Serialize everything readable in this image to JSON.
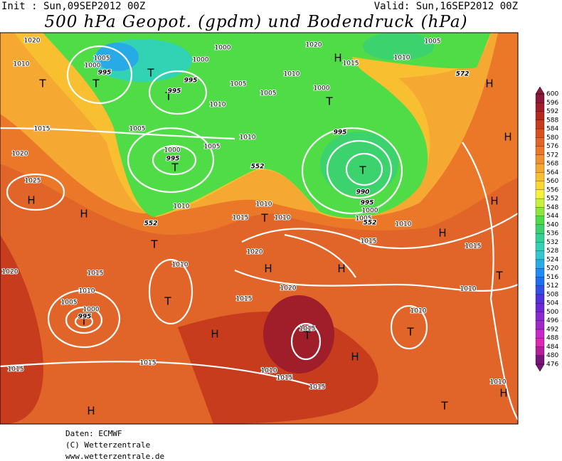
{
  "header": {
    "init": "Init : Sun,09SEP2012 00Z",
    "valid": "Valid: Sun,16SEP2012 00Z",
    "title": "500 hPa Geopot. (gpdm) und Bodendruck (hPa)"
  },
  "map": {
    "labels": [
      "H",
      "H",
      "H",
      "H",
      "H",
      "H",
      "H",
      "H",
      "H",
      "H",
      "H",
      "H",
      "H",
      "T",
      "T",
      "T",
      "T",
      "T",
      "T",
      "T",
      "T",
      "T",
      "T",
      "T",
      "T",
      "T",
      "T",
      "T",
      "1020",
      "1010",
      "1005",
      "1000",
      "995",
      "1000",
      "1000",
      "995",
      "995",
      "1010",
      "1005",
      "1005",
      "1005",
      "1015",
      "1005",
      "1000",
      "995",
      "1010",
      "1020",
      "1025",
      "1010",
      "1010",
      "1000",
      "995",
      "990",
      "995",
      "1000",
      "1005",
      "1010",
      "1010",
      "1015",
      "1020",
      "1010",
      "1015",
      "1010",
      "1015",
      "1020",
      "1015",
      "1010",
      "1005",
      "1000",
      "995",
      "1015",
      "1020",
      "1015",
      "1010",
      "1010",
      "1015",
      "1015",
      "1010",
      "1015",
      "1015",
      "1010",
      "1020",
      "1015",
      "1010",
      "1005",
      "552",
      "552",
      "552",
      "572"
    ]
  },
  "colorbar": {
    "labels": [
      600,
      596,
      592,
      588,
      584,
      580,
      576,
      572,
      568,
      564,
      560,
      556,
      552,
      548,
      544,
      540,
      536,
      532,
      528,
      524,
      520,
      516,
      512,
      508,
      504,
      500,
      496,
      492,
      488,
      484,
      480,
      476
    ],
    "colors": [
      "#8b1a3a",
      "#a01e2a",
      "#b4281e",
      "#c83c1e",
      "#d7501e",
      "#e16428",
      "#eb7828",
      "#f09030",
      "#f5a832",
      "#f8c030",
      "#fad830",
      "#f5f03c",
      "#c8f03c",
      "#8ce63c",
      "#50dc46",
      "#3cd26e",
      "#32d296",
      "#32d2b4",
      "#32c8d2",
      "#28aae6",
      "#1e8cf0",
      "#1e6ef0",
      "#3250e6",
      "#5032dc",
      "#6e28d2",
      "#8c28d2",
      "#a028c8",
      "#c828c8",
      "#dc28b4",
      "#b41e9b",
      "#7a1478"
    ]
  },
  "footer": {
    "line1": "Daten: ECMWF",
    "line2": "(C) Wetterzentrale",
    "line3": "www.wetterzentrale.de"
  }
}
